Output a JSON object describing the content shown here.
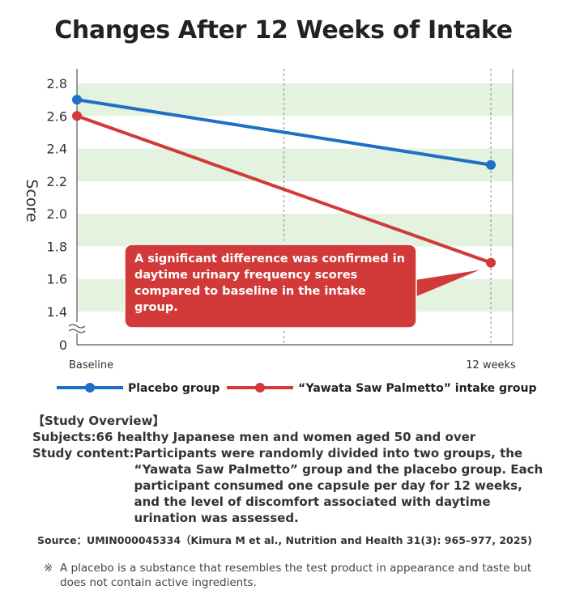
{
  "chart_data": {
    "type": "line",
    "title": "Changes After 12 Weeks of Intake",
    "ylabel": "Score",
    "xlabel": "",
    "categories": [
      "Baseline",
      "",
      "12 weeks"
    ],
    "x_positions": [
      0,
      6,
      12
    ],
    "ylim": [
      1.2,
      2.9
    ],
    "yticks": [
      1.4,
      1.6,
      1.8,
      2.0,
      2.2,
      2.4,
      2.6,
      2.8
    ],
    "ytick_labels": [
      "1.4",
      "1.6",
      "1.8",
      "2.0",
      "2.2",
      "2.4",
      "2.6",
      "2.8"
    ],
    "axis_break_label": "0",
    "series": [
      {
        "name": "Placebo group",
        "x": [
          0,
          12
        ],
        "values": [
          2.7,
          2.3
        ],
        "color": "#1f6fc5"
      },
      {
        "name": "“Yawata Saw Palmetto” intake group",
        "x": [
          0,
          12
        ],
        "values": [
          2.6,
          1.7
        ],
        "color": "#d23a3a"
      }
    ],
    "band_color": "#e3f3e0",
    "annotation": {
      "text": "A significant difference was confirmed in daytime urinary frequency scores compared to baseline in the intake group.",
      "color": "#d23a3a",
      "points_to": "“Yawata Saw Palmetto” intake group at 12 weeks"
    },
    "legend": "bottom"
  },
  "overview": {
    "heading": "【Study Overview】",
    "subjects_label": "Subjects: ",
    "subjects_text": "66 healthy Japanese men and women aged 50 and over",
    "content_label": "Study content: ",
    "content_text": "Participants were randomly divided into two groups, the “Yawata Saw Palmetto” group and the placebo group. Each participant consumed one capsule per day for 12 weeks, and the level of discomfort associated with daytime urination was assessed."
  },
  "source": "Source：UMIN000045334（Kimura M et al., Nutrition and Health 31(3): 965–977, 2025)",
  "note": {
    "mark": "※",
    "text": "A placebo is a substance that resembles the test product in appearance and taste but does not contain active ingredients."
  }
}
